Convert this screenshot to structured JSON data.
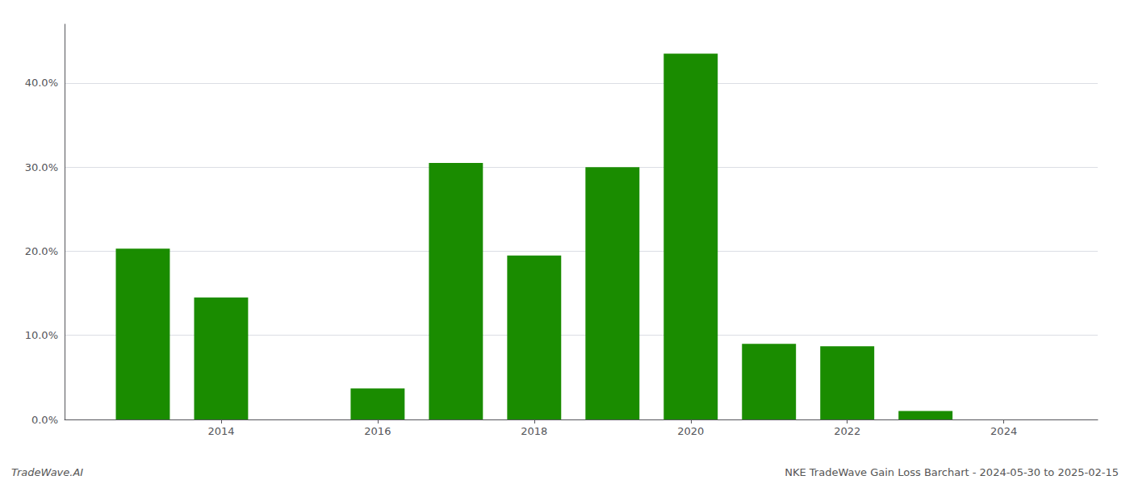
{
  "chart_data": {
    "type": "bar",
    "x": [
      2013,
      2014,
      2016,
      2017,
      2018,
      2019,
      2020,
      2021,
      2022,
      2023
    ],
    "values": [
      0.203,
      0.145,
      0.037,
      0.305,
      0.195,
      0.3,
      0.435,
      0.09,
      0.087,
      0.01
    ],
    "color": "#1a8c00",
    "xlim": [
      2012.0,
      2025.2
    ],
    "xticks": [
      2014,
      2016,
      2018,
      2020,
      2022,
      2024
    ],
    "ylim": [
      0,
      0.47
    ],
    "yticks": [
      {
        "value": 0.0,
        "label": "0.0%"
      },
      {
        "value": 0.1,
        "label": "10.0%"
      },
      {
        "value": 0.2,
        "label": "20.0%"
      },
      {
        "value": 0.3,
        "label": "30.0%"
      },
      {
        "value": 0.4,
        "label": "40.0%"
      }
    ],
    "grid": true,
    "annotations": [
      "TradeWave.AI",
      "NKE TradeWave Gain Loss Barchart - 2024-05-30 to 2025-02-15"
    ]
  }
}
